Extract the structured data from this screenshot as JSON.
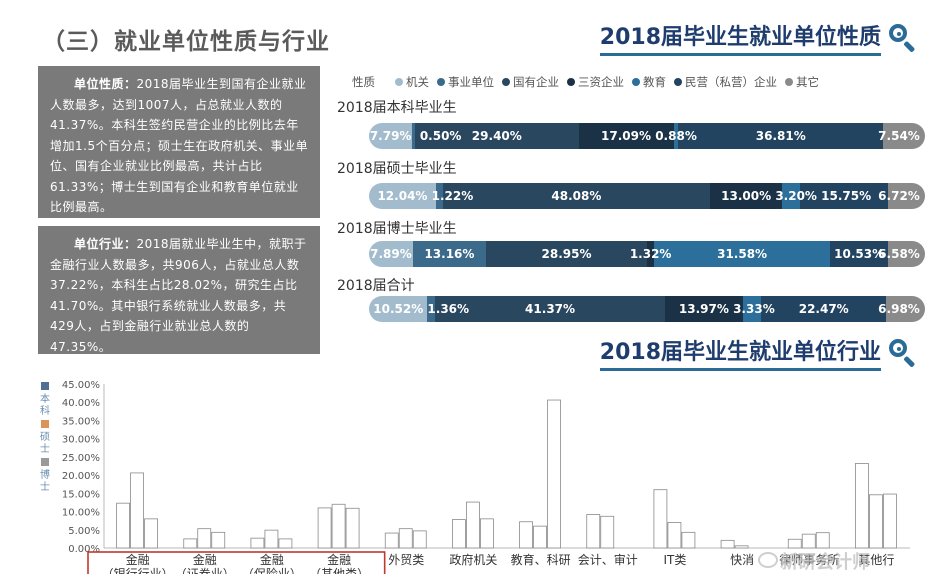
{
  "page_title": "（三）就业单位性质与行业",
  "section1_title": "2018届毕业生就业单位性质",
  "section2_title": "2018届毕业生就业单位行业",
  "text_box1": {
    "lead": "单位性质：",
    "body": "2018届毕业生到国有企业就业人数最多，达到1007人，占总就业人数的41.37%。本科生签约民营企业的比例比去年增加1.5个百分点；硕士生在政府机关、事业单位、国有企业就业比例最高，共计占比61.33%；博士生到国有企业和教育单位就业比例最高。"
  },
  "text_box2": {
    "lead": "单位行业：",
    "body": "2018届就业毕业生中，就职于金融行业人数最多，共906人，占就业总人数37.22%，本科生占比28.02%，研究生占比41.70%。其中银行系统就业人数最多，共429人，占到金融行业就业总人数的47.35%。"
  },
  "legend": {
    "header": "性质",
    "items": [
      {
        "label": "机关",
        "color": "#a3bccd"
      },
      {
        "label": "事业单位",
        "color": "#3c6a8a"
      },
      {
        "label": "国有企业",
        "color": "#2a4760"
      },
      {
        "label": "三资企业",
        "color": "#1a3146"
      },
      {
        "label": "教育",
        "color": "#2b6f9a"
      },
      {
        "label": "民营（私营）企业",
        "color": "#224460"
      },
      {
        "label": "其它",
        "color": "#8a8a8a"
      }
    ]
  },
  "nature_chart": {
    "type": "bar",
    "categories": [
      "机关",
      "事业单位",
      "国有企业",
      "三资企业",
      "教育",
      "民营（私营）企业",
      "其它"
    ],
    "colors": [
      "#a3bccd",
      "#3c6a8a",
      "#2a4760",
      "#1a3146",
      "#2b6f9a",
      "#224460",
      "#8a8a8a"
    ],
    "groups": [
      {
        "name": "2018届本科毕业生",
        "values": [
          7.79,
          0.5,
          29.4,
          17.09,
          0.88,
          36.81,
          7.54
        ],
        "labels": [
          "7.79%",
          "0.50%",
          "29.40%",
          "17.09%",
          "0.88%",
          "36.81%",
          "7.54%"
        ]
      },
      {
        "name": "2018届硕士毕业生",
        "values": [
          12.04,
          1.22,
          48.08,
          13.0,
          3.2,
          15.75,
          6.72
        ],
        "labels": [
          "12.04%",
          "1.22%",
          "48.08%",
          "13.00%",
          "3.20%",
          "15.75%",
          "6.72%"
        ]
      },
      {
        "name": "2018届博士毕业生",
        "values": [
          7.89,
          13.16,
          28.95,
          1.32,
          31.58,
          10.53,
          6.58
        ],
        "labels": [
          "7.89%",
          "13.16%",
          "28.95%",
          "1.32%",
          "31.58%",
          "10.53%",
          "6.58%"
        ]
      },
      {
        "name": "2018届合计",
        "values": [
          10.52,
          1.36,
          41.37,
          13.97,
          3.33,
          22.47,
          6.98
        ],
        "labels": [
          "10.52%",
          "1.36%",
          "41.37%",
          "13.97%",
          "3.33%",
          "22.47%",
          "6.98%"
        ]
      }
    ]
  },
  "chart_data": {
    "type": "bar",
    "title": "2018届毕业生就业单位行业",
    "series": [
      {
        "name": "本科",
        "color": "#4f6f95",
        "values": [
          12.3,
          2.5,
          2.7,
          11.0,
          4.1,
          7.8,
          7.2,
          9.2,
          16.0,
          2.1,
          2.4,
          23.2
        ]
      },
      {
        "name": "硕士",
        "color": "#d9955a",
        "values": [
          20.6,
          5.3,
          4.9,
          12.0,
          5.3,
          12.6,
          6.0,
          8.7,
          7.0,
          0.6,
          3.8,
          14.6
        ]
      },
      {
        "name": "博士",
        "color": "#9a9a9a",
        "values": [
          8.0,
          4.3,
          2.5,
          10.9,
          4.7,
          8.0,
          40.6,
          0.0,
          4.3,
          0.0,
          4.2,
          14.8
        ]
      }
    ],
    "categories": [
      "金融\n（银行行业）",
      "金融\n（证券业）",
      "金融\n（保险业）",
      "金融\n（其他类）",
      "外贸类",
      "政府机关",
      "教育、科研",
      "会计、审计",
      "IT类",
      "快消",
      "律师事务所",
      "其他行"
    ],
    "yticks": [
      "0.00%",
      "5.00%",
      "10.00%",
      "15.00%",
      "20.00%",
      "25.00%",
      "30.00%",
      "35.00%",
      "40.00%",
      "45.00%"
    ],
    "ylim": [
      0,
      45
    ],
    "legend_vertical": [
      "本科",
      "硕士",
      "博士"
    ],
    "highlight_first_n": 4
  },
  "watermark": "新研会计师"
}
